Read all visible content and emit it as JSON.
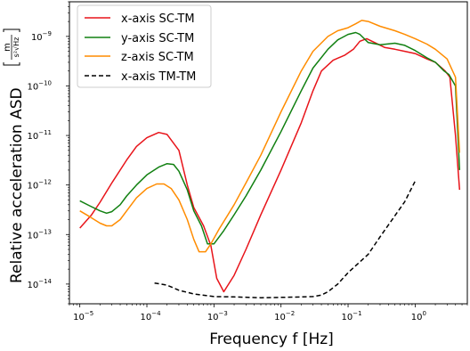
{
  "chart_data": {
    "type": "line",
    "xscale": "log",
    "yscale": "log",
    "xlim": [
      7e-06,
      6
    ],
    "ylim": [
      4e-15,
      5e-09
    ],
    "xlabel": "Frequency f [Hz]",
    "ylabel": "Relative acceleration ASD",
    "ylabel_unit": {
      "numerator": "m",
      "denominator": "s²√Hz"
    },
    "x_ticks": [
      {
        "value": 1e-05,
        "base": "10",
        "exp": "−5"
      },
      {
        "value": 0.0001,
        "base": "10",
        "exp": "−4"
      },
      {
        "value": 0.001,
        "base": "10",
        "exp": "−3"
      },
      {
        "value": 0.01,
        "base": "10",
        "exp": "−2"
      },
      {
        "value": 0.1,
        "base": "10",
        "exp": "−1"
      },
      {
        "value": 1,
        "base": "10",
        "exp": "0"
      }
    ],
    "y_ticks": [
      {
        "value": 1e-14,
        "base": "10",
        "exp": "−14"
      },
      {
        "value": 1e-13,
        "base": "10",
        "exp": "−13"
      },
      {
        "value": 1e-12,
        "base": "10",
        "exp": "−12"
      },
      {
        "value": 1e-11,
        "base": "10",
        "exp": "−11"
      },
      {
        "value": 1e-10,
        "base": "10",
        "exp": "−10"
      },
      {
        "value": 1e-09,
        "base": "10",
        "exp": "−9"
      }
    ],
    "legend_position": "top-left",
    "series": [
      {
        "name": "x-axis SC-TM",
        "color": "#e8141a",
        "dash": "solid",
        "points": [
          [
            1e-05,
            1.35e-13
          ],
          [
            1.5e-05,
            2.5e-13
          ],
          [
            2e-05,
            4.5e-13
          ],
          [
            3e-05,
            1.1e-12
          ],
          [
            5e-05,
            3.2e-12
          ],
          [
            7e-05,
            6e-12
          ],
          [
            0.0001,
            9e-12
          ],
          [
            0.00015,
            1.15e-11
          ],
          [
            0.0002,
            1.05e-11
          ],
          [
            0.0003,
            5e-12
          ],
          [
            0.0004,
            1e-12
          ],
          [
            0.0005,
            3.5e-13
          ],
          [
            0.0007,
            1.5e-13
          ],
          [
            0.0009,
            6e-14
          ],
          [
            0.0011,
            1.3e-14
          ],
          [
            0.0014,
            7e-15
          ],
          [
            0.002,
            1.5e-14
          ],
          [
            0.003,
            5e-14
          ],
          [
            0.005,
            2.5e-13
          ],
          [
            0.01,
            2e-12
          ],
          [
            0.02,
            1.8e-11
          ],
          [
            0.03,
            8e-11
          ],
          [
            0.04,
            2e-10
          ],
          [
            0.06,
            3.3e-10
          ],
          [
            0.09,
            4.2e-10
          ],
          [
            0.12,
            5.5e-10
          ],
          [
            0.15,
            8e-10
          ],
          [
            0.19,
            9e-10
          ],
          [
            0.25,
            7.5e-10
          ],
          [
            0.35,
            6e-10
          ],
          [
            0.5,
            5.5e-10
          ],
          [
            0.7,
            5e-10
          ],
          [
            1,
            4.5e-10
          ],
          [
            1.5,
            3.5e-10
          ],
          [
            2,
            3e-10
          ],
          [
            2.8,
            2e-10
          ],
          [
            3.3,
            1.5e-10
          ],
          [
            4,
            1e-11
          ],
          [
            4.6,
            8e-13
          ]
        ]
      },
      {
        "name": "y-axis SC-TM",
        "color": "#118011",
        "dash": "solid",
        "points": [
          [
            1e-05,
            4.8e-13
          ],
          [
            1.4e-05,
            3.8e-13
          ],
          [
            2e-05,
            3e-13
          ],
          [
            2.5e-05,
            2.7e-13
          ],
          [
            3e-05,
            2.9e-13
          ],
          [
            4e-05,
            4e-13
          ],
          [
            5e-05,
            6e-13
          ],
          [
            7e-05,
            1e-12
          ],
          [
            0.0001,
            1.6e-12
          ],
          [
            0.00015,
            2.3e-12
          ],
          [
            0.0002,
            2.7e-12
          ],
          [
            0.00025,
            2.6e-12
          ],
          [
            0.0003,
            1.9e-12
          ],
          [
            0.0004,
            8e-13
          ],
          [
            0.0005,
            3e-13
          ],
          [
            0.00065,
            1.5e-13
          ],
          [
            0.0008,
            6.5e-14
          ],
          [
            0.001,
            6.5e-14
          ],
          [
            0.0014,
            1.2e-13
          ],
          [
            0.002,
            2.5e-13
          ],
          [
            0.003,
            6e-13
          ],
          [
            0.005,
            2e-12
          ],
          [
            0.01,
            1.2e-11
          ],
          [
            0.02,
            8e-11
          ],
          [
            0.03,
            2.3e-10
          ],
          [
            0.05,
            5.5e-10
          ],
          [
            0.07,
            8.5e-10
          ],
          [
            0.1,
            1.1e-09
          ],
          [
            0.13,
            1.2e-09
          ],
          [
            0.15,
            1.1e-09
          ],
          [
            0.2,
            7.5e-10
          ],
          [
            0.3,
            6.8e-10
          ],
          [
            0.5,
            7.3e-10
          ],
          [
            0.7,
            6.6e-10
          ],
          [
            1,
            5.2e-10
          ],
          [
            1.5,
            3.7e-10
          ],
          [
            2,
            3e-10
          ],
          [
            2.7,
            2e-10
          ],
          [
            3.2,
            1.7e-10
          ],
          [
            4,
            1e-10
          ],
          [
            4.6,
            2e-12
          ]
        ]
      },
      {
        "name": "z-axis SC-TM",
        "color": "#ff8c00",
        "dash": "solid",
        "points": [
          [
            1e-05,
            3e-13
          ],
          [
            1.4e-05,
            2.3e-13
          ],
          [
            2e-05,
            1.7e-13
          ],
          [
            2.5e-05,
            1.5e-13
          ],
          [
            3e-05,
            1.5e-13
          ],
          [
            4e-05,
            2e-13
          ],
          [
            5e-05,
            3e-13
          ],
          [
            7e-05,
            5.5e-13
          ],
          [
            0.0001,
            8.5e-13
          ],
          [
            0.00014,
            1.05e-12
          ],
          [
            0.00018,
            1.05e-12
          ],
          [
            0.00023,
            8.5e-13
          ],
          [
            0.0003,
            5e-13
          ],
          [
            0.0004,
            2e-13
          ],
          [
            0.0005,
            8e-14
          ],
          [
            0.0006,
            4.5e-14
          ],
          [
            0.00075,
            4.5e-14
          ],
          [
            0.0009,
            6.5e-14
          ],
          [
            0.0012,
            1.3e-13
          ],
          [
            0.002,
            4e-13
          ],
          [
            0.003,
            1.1e-12
          ],
          [
            0.005,
            4e-12
          ],
          [
            0.01,
            3e-11
          ],
          [
            0.02,
            2e-10
          ],
          [
            0.03,
            5e-10
          ],
          [
            0.05,
            1e-09
          ],
          [
            0.07,
            1.3e-09
          ],
          [
            0.1,
            1.5e-09
          ],
          [
            0.13,
            1.8e-09
          ],
          [
            0.16,
            2.1e-09
          ],
          [
            0.2,
            2e-09
          ],
          [
            0.3,
            1.6e-09
          ],
          [
            0.5,
            1.3e-09
          ],
          [
            0.7,
            1.1e-09
          ],
          [
            1,
            9e-10
          ],
          [
            1.5,
            7e-10
          ],
          [
            2,
            5.5e-10
          ],
          [
            3,
            3.5e-10
          ],
          [
            4,
            1.5e-10
          ],
          [
            4.6,
            4.5e-12
          ]
        ]
      },
      {
        "name": "x-axis TM-TM",
        "color": "#000000",
        "dash": "dashed",
        "points": [
          [
            0.00013,
            1.05e-14
          ],
          [
            0.0002,
            9.5e-15
          ],
          [
            0.0003,
            7.5e-15
          ],
          [
            0.0005,
            6.3e-15
          ],
          [
            0.001,
            5.6e-15
          ],
          [
            0.002,
            5.5e-15
          ],
          [
            0.005,
            5.3e-15
          ],
          [
            0.01,
            5.4e-15
          ],
          [
            0.02,
            5.5e-15
          ],
          [
            0.03,
            5.6e-15
          ],
          [
            0.04,
            6e-15
          ],
          [
            0.05,
            7e-15
          ],
          [
            0.07,
            1e-14
          ],
          [
            0.1,
            1.7e-14
          ],
          [
            0.2,
            4e-14
          ],
          [
            0.3,
            9e-14
          ],
          [
            0.5,
            2.4e-13
          ],
          [
            0.7,
            4.6e-13
          ],
          [
            1,
            1.2e-12
          ]
        ]
      }
    ]
  }
}
